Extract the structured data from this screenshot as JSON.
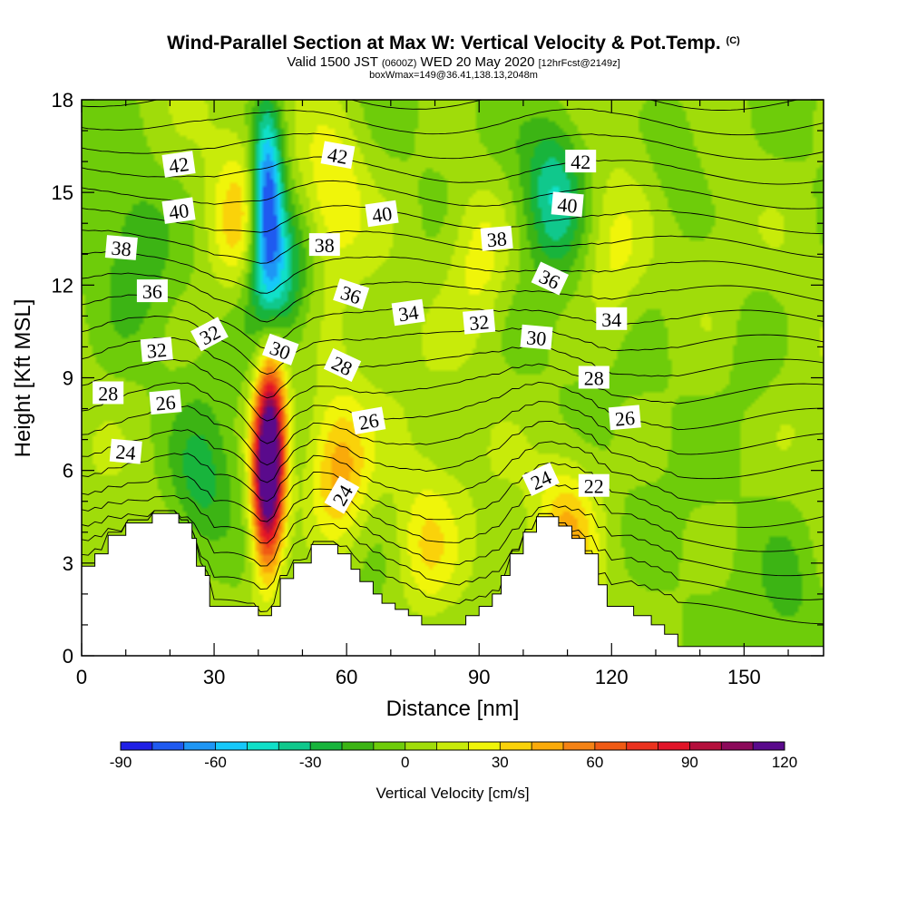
{
  "header": {
    "title": "Wind-Parallel Section at Max W: Vertical Velocity & Pot.Temp.",
    "copyright": "(C)",
    "valid_label": "Valid 1500 JST",
    "utc": "(0600Z)",
    "date": "WED 20 May 2020",
    "forecast": "[12hrFcst@2149z]",
    "box_info": "boxWmax=149@36.41,138.13,2048m"
  },
  "chart_data": {
    "type": "heatmap",
    "xlabel": "Distance [nm]",
    "ylabel": "Height [Kft MSL]",
    "xlim": [
      0,
      168
    ],
    "ylim": [
      0,
      18
    ],
    "x_ticks": [
      0,
      30,
      60,
      90,
      120,
      150
    ],
    "y_ticks": [
      0,
      3,
      6,
      9,
      12,
      15,
      18
    ],
    "grid": false,
    "colorbar": {
      "label": "Vertical Velocity [cm/s]",
      "ticks": [
        -90,
        -60,
        -30,
        0,
        30,
        60,
        90,
        120
      ],
      "levels": [
        -90,
        -80,
        -70,
        -60,
        -50,
        -40,
        -30,
        -20,
        -10,
        0,
        10,
        20,
        30,
        40,
        50,
        60,
        70,
        80,
        90,
        100,
        110,
        120
      ],
      "colors": [
        "#1f1fe6",
        "#1f5af0",
        "#1e96f5",
        "#16c8fa",
        "#10e0c8",
        "#10c88c",
        "#18b43c",
        "#3cb414",
        "#6ecc0a",
        "#a0dc0a",
        "#c8eb0a",
        "#f0f50a",
        "#fad20a",
        "#faaa0a",
        "#f58214",
        "#f05a14",
        "#eb321e",
        "#e11428",
        "#b40f3c",
        "#8c0a5a",
        "#5a0a8c"
      ],
      "location": "bottom"
    },
    "velocity_features": [
      {
        "x": 42,
        "z": 5.5,
        "w": 110
      },
      {
        "x": 43,
        "z": 7.5,
        "w": 70
      },
      {
        "x": 42,
        "z": 15,
        "w": -85
      },
      {
        "x": 44,
        "z": 12.5,
        "w": -50
      },
      {
        "x": 107,
        "z": 15,
        "w": -40
      },
      {
        "x": 36,
        "z": 14,
        "w": 35
      },
      {
        "x": 58,
        "z": 6,
        "w": 45
      },
      {
        "x": 57,
        "z": 15,
        "w": 25
      },
      {
        "x": 90,
        "z": 13,
        "w": 25
      },
      {
        "x": 120,
        "z": 13,
        "w": 20
      },
      {
        "x": 110,
        "z": 4,
        "w": 35
      },
      {
        "x": 78,
        "z": 3.5,
        "w": 25
      },
      {
        "x": 27,
        "z": 5.5,
        "w": -25
      },
      {
        "x": 12,
        "z": 13,
        "w": -18
      },
      {
        "x": 135,
        "z": 16,
        "w": -15
      },
      {
        "x": 152,
        "z": 10,
        "w": -12
      },
      {
        "x": 160,
        "z": 2,
        "w": -12
      }
    ],
    "terrain": [
      [
        0,
        2.9
      ],
      [
        3,
        2.9
      ],
      [
        3,
        3.3
      ],
      [
        6,
        3.3
      ],
      [
        6,
        3.9
      ],
      [
        10,
        3.9
      ],
      [
        10,
        4.3
      ],
      [
        16,
        4.3
      ],
      [
        16,
        4.6
      ],
      [
        22,
        4.6
      ],
      [
        22,
        4.3
      ],
      [
        25,
        4.3
      ],
      [
        25,
        3.8
      ],
      [
        26,
        3.8
      ],
      [
        26,
        2.9
      ],
      [
        28,
        2.9
      ],
      [
        28,
        2.6
      ],
      [
        29,
        2.6
      ],
      [
        29,
        1.6
      ],
      [
        40,
        1.6
      ],
      [
        40,
        1.3
      ],
      [
        43,
        1.3
      ],
      [
        43,
        1.6
      ],
      [
        45,
        1.6
      ],
      [
        45,
        2.5
      ],
      [
        48,
        2.5
      ],
      [
        48,
        3.0
      ],
      [
        52,
        3.0
      ],
      [
        52,
        3.6
      ],
      [
        58,
        3.6
      ],
      [
        58,
        3.3
      ],
      [
        61,
        3.3
      ],
      [
        61,
        2.8
      ],
      [
        63,
        2.8
      ],
      [
        63,
        2.4
      ],
      [
        66,
        2.4
      ],
      [
        66,
        2.0
      ],
      [
        68,
        2.0
      ],
      [
        68,
        1.7
      ],
      [
        71,
        1.7
      ],
      [
        71,
        1.5
      ],
      [
        74,
        1.5
      ],
      [
        74,
        1.3
      ],
      [
        77,
        1.3
      ],
      [
        77,
        1.0
      ],
      [
        87,
        1.0
      ],
      [
        87,
        1.3
      ],
      [
        90,
        1.3
      ],
      [
        90,
        1.6
      ],
      [
        93,
        1.6
      ],
      [
        93,
        2.0
      ],
      [
        95,
        2.0
      ],
      [
        95,
        2.6
      ],
      [
        97,
        2.6
      ],
      [
        97,
        3.3
      ],
      [
        100,
        3.3
      ],
      [
        100,
        4.0
      ],
      [
        103,
        4.0
      ],
      [
        103,
        4.5
      ],
      [
        108,
        4.5
      ],
      [
        108,
        4.2
      ],
      [
        111,
        4.2
      ],
      [
        111,
        3.8
      ],
      [
        114,
        3.8
      ],
      [
        114,
        3.3
      ],
      [
        117,
        3.3
      ],
      [
        117,
        2.3
      ],
      [
        119,
        2.3
      ],
      [
        119,
        1.6
      ],
      [
        125,
        1.6
      ],
      [
        125,
        1.3
      ],
      [
        129,
        1.3
      ],
      [
        129,
        1.0
      ],
      [
        132,
        1.0
      ],
      [
        132,
        0.7
      ],
      [
        135,
        0.7
      ],
      [
        135,
        0.3
      ],
      [
        168,
        0.3
      ]
    ],
    "theta_contours": {
      "levels": [
        21,
        22,
        23,
        24,
        25,
        26,
        27,
        28,
        29,
        30,
        31,
        32,
        33,
        34,
        35,
        36,
        37,
        38,
        39,
        40,
        41,
        42,
        43,
        44
      ],
      "labels": [
        {
          "text": "42",
          "x": 22,
          "z": 15.9,
          "angle": -8
        },
        {
          "text": "40",
          "x": 22,
          "z": 14.4,
          "angle": -8
        },
        {
          "text": "38",
          "x": 9,
          "z": 13.2,
          "angle": 5
        },
        {
          "text": "36",
          "x": 16,
          "z": 11.8,
          "angle": 0
        },
        {
          "text": "32",
          "x": 17,
          "z": 9.9,
          "angle": -5
        },
        {
          "text": "32",
          "x": 29,
          "z": 10.4,
          "angle": -28
        },
        {
          "text": "28",
          "x": 6,
          "z": 8.5,
          "angle": 0
        },
        {
          "text": "26",
          "x": 19,
          "z": 8.2,
          "angle": -5
        },
        {
          "text": "24",
          "x": 10,
          "z": 6.6,
          "angle": 5
        },
        {
          "text": "42",
          "x": 58,
          "z": 16.2,
          "angle": 10
        },
        {
          "text": "40",
          "x": 68,
          "z": 14.3,
          "angle": -8
        },
        {
          "text": "38",
          "x": 55,
          "z": 13.3,
          "angle": 0
        },
        {
          "text": "36",
          "x": 61,
          "z": 11.7,
          "angle": 18
        },
        {
          "text": "34",
          "x": 74,
          "z": 11.1,
          "angle": -8
        },
        {
          "text": "30",
          "x": 45,
          "z": 9.9,
          "angle": 20
        },
        {
          "text": "28",
          "x": 59,
          "z": 9.4,
          "angle": 25
        },
        {
          "text": "26",
          "x": 65,
          "z": 7.6,
          "angle": -10
        },
        {
          "text": "24",
          "x": 59,
          "z": 5.2,
          "angle": -60
        },
        {
          "text": "38",
          "x": 94,
          "z": 13.5,
          "angle": -5
        },
        {
          "text": "32",
          "x": 90,
          "z": 10.8,
          "angle": -5
        },
        {
          "text": "30",
          "x": 103,
          "z": 10.3,
          "angle": 5
        },
        {
          "text": "36",
          "x": 106,
          "z": 12.2,
          "angle": 25
        },
        {
          "text": "24",
          "x": 104,
          "z": 5.7,
          "angle": -25
        },
        {
          "text": "42",
          "x": 113,
          "z": 16.0,
          "angle": 0
        },
        {
          "text": "40",
          "x": 110,
          "z": 14.6,
          "angle": 5
        },
        {
          "text": "34",
          "x": 120,
          "z": 10.9,
          "angle": 0
        },
        {
          "text": "28",
          "x": 116,
          "z": 9.0,
          "angle": 0
        },
        {
          "text": "26",
          "x": 123,
          "z": 7.7,
          "angle": -5
        },
        {
          "text": "22",
          "x": 116,
          "z": 5.5,
          "angle": 0
        }
      ]
    }
  }
}
